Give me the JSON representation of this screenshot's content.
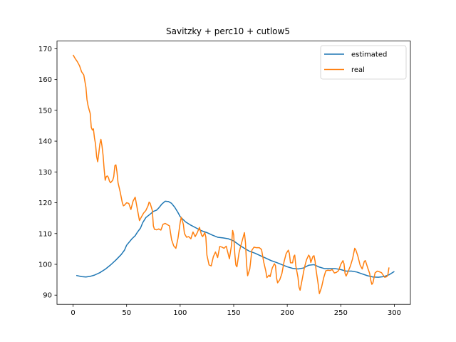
{
  "chart_data": {
    "type": "line",
    "title": "Savitzky + perc10 + cutlow5",
    "xlabel": "",
    "ylabel": "",
    "xlim": [
      -15,
      315
    ],
    "ylim": [
      87,
      172.5
    ],
    "xticks": [
      0,
      50,
      100,
      150,
      200,
      250,
      300
    ],
    "yticks": [
      90,
      100,
      110,
      120,
      130,
      140,
      150,
      160,
      170
    ],
    "grid": false,
    "legend_position": "top-right",
    "series": [
      {
        "name": "estimated",
        "color": "#1f77b4",
        "points": [
          [
            3,
            96.4
          ],
          [
            8,
            96
          ],
          [
            12,
            95.9
          ],
          [
            16,
            96.1
          ],
          [
            20,
            96.5
          ],
          [
            25,
            97.3
          ],
          [
            30,
            98.4
          ],
          [
            35,
            99.8
          ],
          [
            40,
            101.4
          ],
          [
            45,
            103.2
          ],
          [
            48,
            104.6
          ],
          [
            50,
            106.2
          ],
          [
            55,
            108.3
          ],
          [
            58,
            109.3
          ],
          [
            60,
            110.4
          ],
          [
            63,
            111.8
          ],
          [
            65,
            113.5
          ],
          [
            68,
            115.2
          ],
          [
            72,
            116.3
          ],
          [
            75,
            117.2
          ],
          [
            78,
            117.6
          ],
          [
            80,
            118.3
          ],
          [
            83,
            119.6
          ],
          [
            86,
            120.5
          ],
          [
            89,
            120.4
          ],
          [
            92,
            119.8
          ],
          [
            95,
            118.5
          ],
          [
            98,
            116.8
          ],
          [
            100,
            115.5
          ],
          [
            105,
            113.8
          ],
          [
            110,
            112.7
          ],
          [
            115,
            111.8
          ],
          [
            120,
            110.9
          ],
          [
            125,
            110.3
          ],
          [
            130,
            109.5
          ],
          [
            135,
            108.8
          ],
          [
            140,
            108.6
          ],
          [
            145,
            108.3
          ],
          [
            150,
            107.6
          ],
          [
            155,
            106.3
          ],
          [
            160,
            105.2
          ],
          [
            165,
            104.2
          ],
          [
            170,
            103.6
          ],
          [
            175,
            102.8
          ],
          [
            180,
            102
          ],
          [
            185,
            101.2
          ],
          [
            190,
            100.6
          ],
          [
            195,
            99.9
          ],
          [
            200,
            99.2
          ],
          [
            205,
            98.7
          ],
          [
            210,
            98.5
          ],
          [
            215,
            98.8
          ],
          [
            220,
            99.7
          ],
          [
            225,
            99.9
          ],
          [
            230,
            99.1
          ],
          [
            235,
            98.6
          ],
          [
            240,
            98.6
          ],
          [
            245,
            98.6
          ],
          [
            250,
            98.3
          ],
          [
            255,
            97.8
          ],
          [
            260,
            97.8
          ],
          [
            265,
            97.5
          ],
          [
            270,
            96.9
          ],
          [
            275,
            96.3
          ],
          [
            280,
            95.9
          ],
          [
            285,
            95.8
          ],
          [
            290,
            96
          ],
          [
            295,
            96.6
          ],
          [
            300,
            97.7
          ]
        ]
      },
      {
        "name": "real",
        "color": "#ff7f0e",
        "points": [
          [
            0,
            168
          ],
          [
            2,
            166.8
          ],
          [
            4,
            165.8
          ],
          [
            6,
            164.5
          ],
          [
            8,
            162.5
          ],
          [
            10,
            161.5
          ],
          [
            12,
            157.5
          ],
          [
            13,
            153.5
          ],
          [
            14,
            151.5
          ],
          [
            15,
            150.2
          ],
          [
            16,
            149
          ],
          [
            17,
            144.5
          ],
          [
            18,
            143.6
          ],
          [
            19,
            144
          ],
          [
            20,
            141
          ],
          [
            21,
            139
          ],
          [
            22,
            135
          ],
          [
            23,
            133.3
          ],
          [
            24,
            136
          ],
          [
            25,
            139
          ],
          [
            26,
            140.6
          ],
          [
            27,
            138.5
          ],
          [
            28,
            135.5
          ],
          [
            29,
            131
          ],
          [
            30,
            127.3
          ],
          [
            31,
            128.5
          ],
          [
            32,
            128.7
          ],
          [
            33,
            128.2
          ],
          [
            34,
            127
          ],
          [
            35,
            126.5
          ],
          [
            37,
            127.3
          ],
          [
            38,
            128.5
          ],
          [
            39,
            132
          ],
          [
            40,
            132.3
          ],
          [
            41,
            130
          ],
          [
            42,
            126.5
          ],
          [
            44,
            123.5
          ],
          [
            46,
            120
          ],
          [
            47,
            119
          ],
          [
            48,
            119.2
          ],
          [
            50,
            120
          ],
          [
            52,
            119.8
          ],
          [
            54,
            117.8
          ],
          [
            56,
            120.5
          ],
          [
            58,
            121.8
          ],
          [
            60,
            118
          ],
          [
            62,
            114.2
          ],
          [
            64,
            115.5
          ],
          [
            66,
            116.7
          ],
          [
            68,
            117.5
          ],
          [
            70,
            119
          ],
          [
            71,
            120.2
          ],
          [
            72,
            119.8
          ],
          [
            74,
            117.5
          ],
          [
            75,
            112.5
          ],
          [
            76,
            111.4
          ],
          [
            78,
            111.2
          ],
          [
            80,
            111.5
          ],
          [
            82,
            111.1
          ],
          [
            84,
            113
          ],
          [
            86,
            113.3
          ],
          [
            88,
            112.9
          ],
          [
            90,
            112.5
          ],
          [
            92,
            108
          ],
          [
            94,
            106
          ],
          [
            96,
            105.2
          ],
          [
            98,
            108.5
          ],
          [
            100,
            113.5
          ],
          [
            101,
            115.3
          ],
          [
            103,
            113
          ],
          [
            104,
            110
          ],
          [
            106,
            108.8
          ],
          [
            108,
            109
          ],
          [
            110,
            108.3
          ],
          [
            112,
            110.5
          ],
          [
            114,
            109
          ],
          [
            116,
            110.3
          ],
          [
            118,
            112
          ],
          [
            120,
            109.5
          ],
          [
            121,
            109
          ],
          [
            123,
            110.3
          ],
          [
            124,
            108.8
          ],
          [
            125,
            103
          ],
          [
            127,
            99.8
          ],
          [
            129,
            99.5
          ],
          [
            131,
            102.5
          ],
          [
            133,
            104
          ],
          [
            135,
            102.2
          ],
          [
            137,
            105.8
          ],
          [
            139,
            105.6
          ],
          [
            141,
            105.2
          ],
          [
            143,
            105.9
          ],
          [
            145,
            103.2
          ],
          [
            146,
            101.8
          ],
          [
            148,
            106.3
          ],
          [
            149,
            111
          ],
          [
            150,
            109.5
          ],
          [
            151,
            103.5
          ],
          [
            152,
            99.8
          ],
          [
            153,
            99.2
          ],
          [
            155,
            103.8
          ],
          [
            157,
            106.5
          ],
          [
            159,
            109
          ],
          [
            160,
            110.3
          ],
          [
            161,
            107
          ],
          [
            162,
            100.2
          ],
          [
            163,
            96.3
          ],
          [
            165,
            98.5
          ],
          [
            167,
            104.6
          ],
          [
            169,
            105.6
          ],
          [
            171,
            105.4
          ],
          [
            174,
            105.4
          ],
          [
            176,
            104.8
          ],
          [
            178,
            100.8
          ],
          [
            180,
            97.8
          ],
          [
            181,
            95.7
          ],
          [
            183,
            96.5
          ],
          [
            184,
            96
          ],
          [
            186,
            98.8
          ],
          [
            188,
            100.2
          ],
          [
            189,
            99.6
          ],
          [
            190,
            95.6
          ],
          [
            191,
            94
          ],
          [
            193,
            95
          ],
          [
            195,
            97
          ],
          [
            197,
            100.8
          ],
          [
            199,
            103.5
          ],
          [
            201,
            104.6
          ],
          [
            202,
            103.5
          ],
          [
            203,
            100.5
          ],
          [
            205,
            100.5
          ],
          [
            206,
            102.5
          ],
          [
            207,
            103
          ],
          [
            208,
            99.5
          ],
          [
            210,
            95.8
          ],
          [
            211,
            92.6
          ],
          [
            212,
            91.6
          ],
          [
            214,
            95.2
          ],
          [
            216,
            98.9
          ],
          [
            218,
            101.5
          ],
          [
            220,
            103
          ],
          [
            221,
            102.5
          ],
          [
            222,
            100.6
          ],
          [
            224,
            102.6
          ],
          [
            225,
            102.8
          ],
          [
            226,
            101
          ],
          [
            227,
            98
          ],
          [
            229,
            93.3
          ],
          [
            230,
            90.5
          ],
          [
            232,
            92.5
          ],
          [
            234,
            95.6
          ],
          [
            236,
            97.9
          ],
          [
            238,
            98.1
          ],
          [
            240,
            98
          ],
          [
            242,
            98.3
          ],
          [
            244,
            97.2
          ],
          [
            246,
            97.4
          ],
          [
            248,
            98
          ],
          [
            250,
            100
          ],
          [
            252,
            101.2
          ],
          [
            253,
            100.2
          ],
          [
            254,
            97
          ],
          [
            255,
            96.2
          ],
          [
            257,
            97.8
          ],
          [
            259,
            99.5
          ],
          [
            261,
            101.8
          ],
          [
            262,
            103.5
          ],
          [
            263,
            105.2
          ],
          [
            264,
            104.7
          ],
          [
            266,
            102.6
          ],
          [
            268,
            99.8
          ],
          [
            270,
            98.5
          ],
          [
            272,
            101
          ],
          [
            273,
            101.2
          ],
          [
            275,
            99
          ],
          [
            277,
            97
          ],
          [
            278,
            94.8
          ],
          [
            279,
            93.5
          ],
          [
            280,
            94
          ],
          [
            282,
            97.2
          ],
          [
            284,
            97.8
          ],
          [
            286,
            97.6
          ],
          [
            288,
            97.3
          ],
          [
            290,
            96.3
          ],
          [
            291,
            95.8
          ],
          [
            293,
            96
          ],
          [
            294,
            96.7
          ],
          [
            295,
            99
          ]
        ]
      }
    ]
  }
}
